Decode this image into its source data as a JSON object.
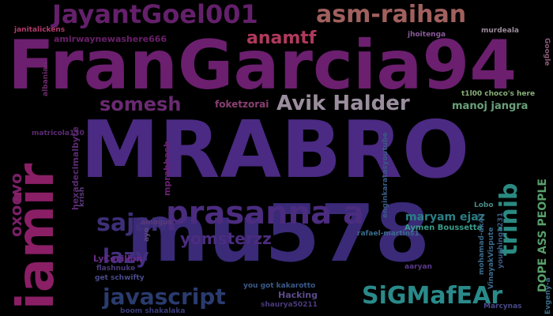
{
  "words": [
    {
      "text": "FranGarcia94",
      "color": "#6b1f6e"
    },
    {
      "text": "MRABRO",
      "color": "#4a2a82"
    },
    {
      "text": "mu578",
      "color": "#3a2a78"
    },
    {
      "text": "iamir",
      "color": "#8a1f66"
    },
    {
      "text": "prasanna a",
      "color": "#4b2c7f"
    },
    {
      "text": "JayantGoel001",
      "color": "#64206b"
    },
    {
      "text": "asm-raihan",
      "color": "#a0605e"
    },
    {
      "text": "anamtf",
      "color": "#b03a5c"
    },
    {
      "text": "somesh",
      "color": "#6a2a72"
    },
    {
      "text": "Avik Halder",
      "color": "#9a8e9e"
    },
    {
      "text": "sajan",
      "color": "#3e2f78"
    },
    {
      "text": "javascript",
      "color": "#2a3b6e"
    },
    {
      "text": "SiGMafEAr",
      "color": "#2a8a8a"
    },
    {
      "text": "yomsterzz",
      "color": "#4b2c7f"
    },
    {
      "text": "lazy",
      "color": "#443080"
    },
    {
      "text": "trinib",
      "color": "#2a8a82"
    },
    {
      "text": "oxoovo",
      "color": "#7a1f68"
    },
    {
      "text": "manoj jangra",
      "color": "#6aa07a"
    },
    {
      "text": "maryam ejaz",
      "color": "#2a7f85"
    },
    {
      "text": "foketzorai",
      "color": "#8a3f73"
    },
    {
      "text": "hexadecimalbyte",
      "color": "#5a2a72"
    },
    {
      "text": "mprabhash",
      "color": "#6a2272"
    },
    {
      "text": "enginkaratasyoutube",
      "color": "#3a5a85"
    },
    {
      "text": "DOPE ASS PEOPLE",
      "color": "#58a06a"
    },
    {
      "text": "Aymen Boussetta",
      "color": "#3a9a8a"
    },
    {
      "text": "rafael-martins1",
      "color": "#3a6a8a"
    },
    {
      "text": "amirwaynewashere666",
      "color": "#6a1f6a"
    },
    {
      "text": "janitalickens",
      "color": "#b03a6a"
    },
    {
      "text": "jhoitenga",
      "color": "#8a5a9a"
    },
    {
      "text": "murdeala",
      "color": "#9a8a9a"
    },
    {
      "text": "Google",
      "color": "#8a5a7a"
    },
    {
      "text": "albanian",
      "color": "#6a2a6a"
    },
    {
      "text": "t1l00 choco's here",
      "color": "#8ab07a"
    },
    {
      "text": "matricola130",
      "color": "#5a2a72"
    },
    {
      "text": "krish",
      "color": "#5a3a7a"
    },
    {
      "text": "Lobo",
      "color": "#4a8a85"
    },
    {
      "text": "amogus",
      "color": "#5a3a7a"
    },
    {
      "text": "ayo",
      "color": "#5a4a7a"
    },
    {
      "text": "LyCecilion",
      "color": "#6a2a8a"
    },
    {
      "text": "flashnuke",
      "color": "#4a3a7a"
    },
    {
      "text": "get schwifty",
      "color": "#4a4a8a"
    },
    {
      "text": "mohamad-ak47",
      "color": "#3a6a8a"
    },
    {
      "text": "VinayakVispute",
      "color": "#3a6a8a"
    },
    {
      "text": "youshing1231",
      "color": "#3a5a85"
    },
    {
      "text": "aaryan",
      "color": "#5a3a8a"
    },
    {
      "text": "you got kakarotto",
      "color": "#3a5a8a"
    },
    {
      "text": "Hacking",
      "color": "#5a4a8a"
    },
    {
      "text": "shaurya50211",
      "color": "#4a3a7a"
    },
    {
      "text": "boom shakalaka",
      "color": "#3a3a7a"
    },
    {
      "text": "Marcynas",
      "color": "#4a4a8a"
    },
    {
      "text": "Evgeny-a",
      "color": "#3a6a85"
    }
  ]
}
